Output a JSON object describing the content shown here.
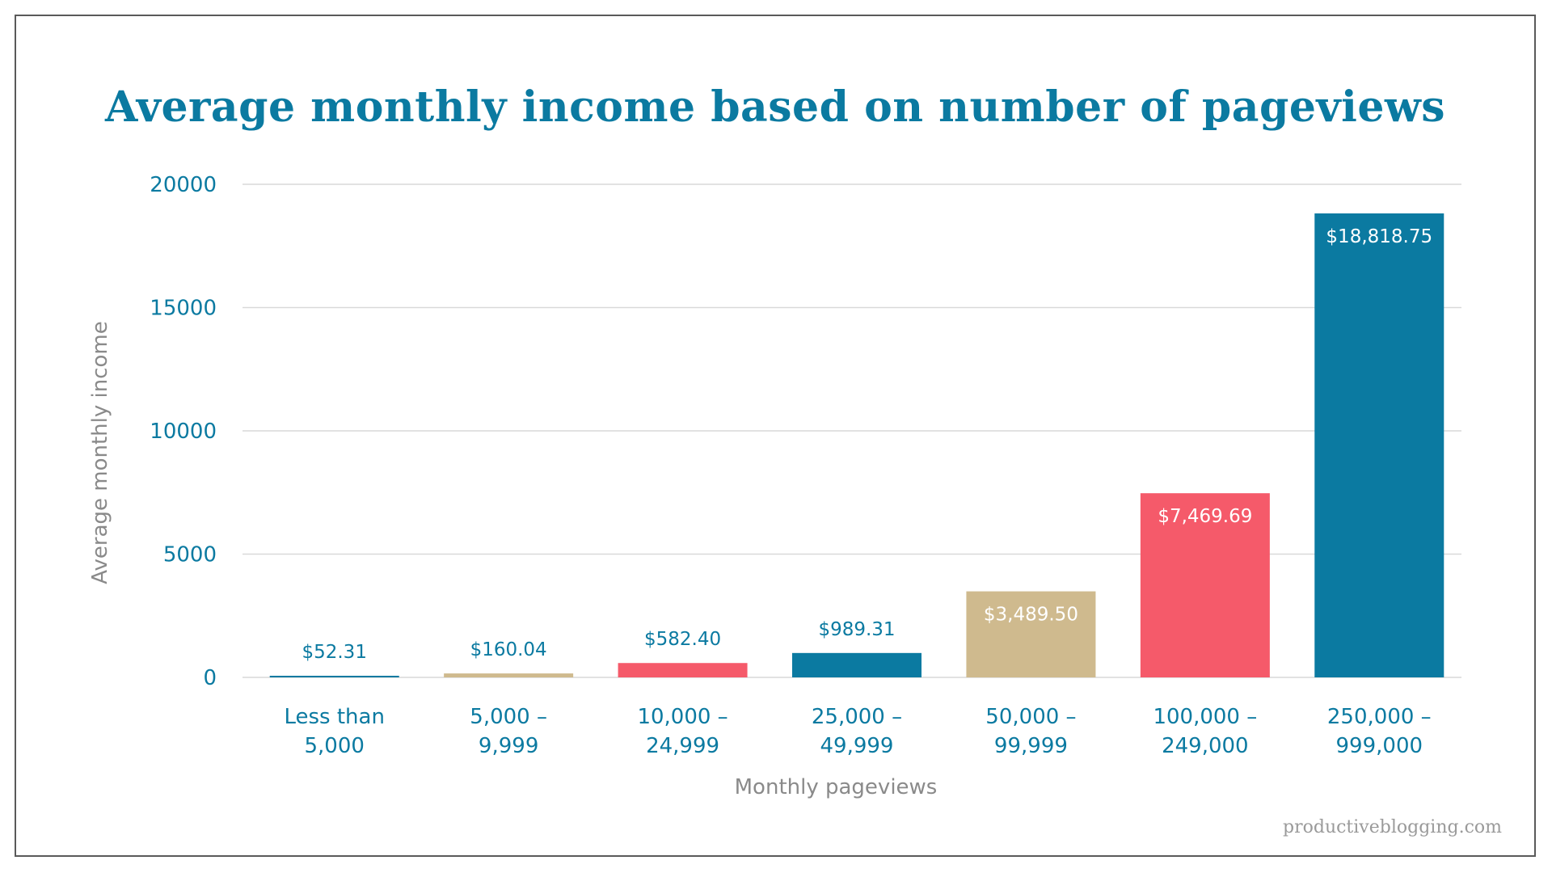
{
  "watermark": "productiveblogging.com",
  "chart_data": {
    "type": "bar",
    "title": "Average monthly income based on number of pageviews",
    "xlabel": "Monthly pageviews",
    "ylabel": "Average monthly income",
    "ylim": [
      0,
      20000
    ],
    "yticks": [
      "0",
      "5000",
      "10000",
      "15000",
      "20000"
    ],
    "grid": true,
    "legend": "none",
    "categories": [
      [
        "Less than",
        "5,000"
      ],
      [
        "5,000 –",
        "9,999"
      ],
      [
        "10,000 –",
        "24,999"
      ],
      [
        "25,000 –",
        "49,999"
      ],
      [
        "50,000 –",
        "99,999"
      ],
      [
        "100,000 –",
        "249,000"
      ],
      [
        "250,000 –",
        "999,000"
      ]
    ],
    "values": [
      52.31,
      160.04,
      582.4,
      989.31,
      3489.5,
      7469.69,
      18818.75
    ],
    "value_labels": [
      "$52.31",
      "$160.04",
      "$582.40",
      "$989.31",
      "$3,489.50",
      "$7,469.69",
      "$18,818.75"
    ],
    "colors": [
      "#0b7aa1",
      "#cfba8e",
      "#f55a6a",
      "#0b7aa1",
      "#cfba8e",
      "#f55a6a",
      "#0b7aa1"
    ],
    "label_inside": [
      false,
      false,
      false,
      false,
      true,
      true,
      true
    ],
    "label_color_outside": "#0b7aa1",
    "label_color_inside": "#ffffff",
    "gridline_color": "#d9d9d9"
  }
}
